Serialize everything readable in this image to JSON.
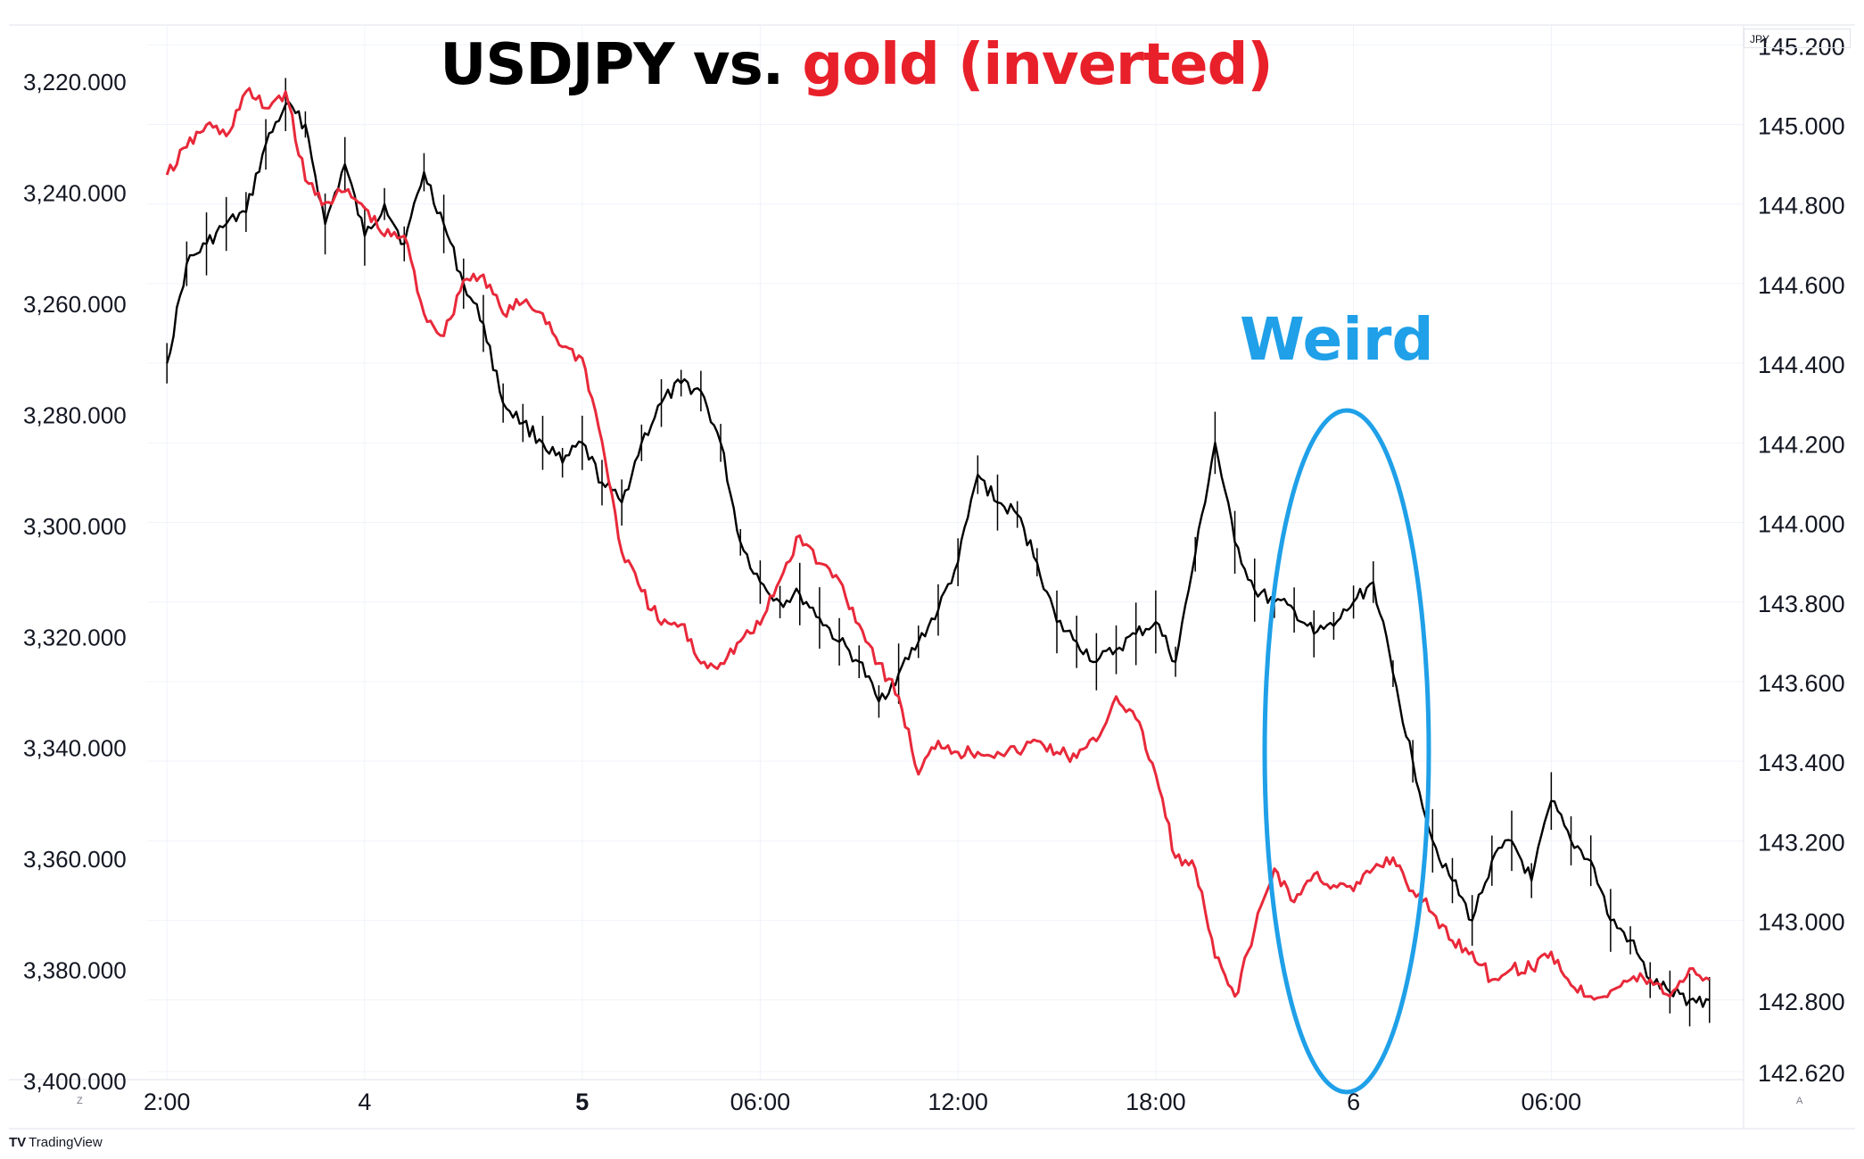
{
  "title": {
    "part1": "USDJPY vs.",
    "part2": "gold (inverted)"
  },
  "annotation": {
    "text": "Weird"
  },
  "branding": {
    "name": "TradingView",
    "mark": "TV"
  },
  "currency_label": "JPY",
  "corner_labels": {
    "left": "Z",
    "right": "A"
  },
  "colors": {
    "usdjpy": "#000000",
    "gold": "#e8293a",
    "annotation": "#1fa0e8",
    "grid": "#f0f3fa"
  },
  "chart_data": {
    "type": "line",
    "title": "USDJPY vs. gold (inverted)",
    "x_tick_labels": [
      "2:00",
      "4",
      "5",
      "06:00",
      "12:00",
      "18:00",
      "6",
      "06:00"
    ],
    "x_tick_bold": [
      false,
      false,
      true,
      false,
      false,
      false,
      false,
      false
    ],
    "left_axis": {
      "inverted": true,
      "ylim": [
        3210,
        3400
      ],
      "tick_labels": [
        "3,220.000",
        "3,240.000",
        "3,260.000",
        "3,280.000",
        "3,300.000",
        "3,320.000",
        "3,340.000",
        "3,360.000",
        "3,380.000",
        "3,400.000"
      ],
      "tick_values": [
        3220,
        3240,
        3260,
        3280,
        3300,
        3320,
        3340,
        3360,
        3380,
        3400
      ]
    },
    "right_axis": {
      "ylim": [
        142.6,
        145.25
      ],
      "tick_labels": [
        "145.200",
        "145.000",
        "144.800",
        "144.600",
        "144.400",
        "144.200",
        "144.000",
        "143.800",
        "143.600",
        "143.400",
        "143.200",
        "143.000",
        "142.800",
        "142.620"
      ],
      "tick_values": [
        145.2,
        145.0,
        144.8,
        144.6,
        144.4,
        144.2,
        144.0,
        143.8,
        143.6,
        143.4,
        143.2,
        143.0,
        142.8,
        142.62
      ]
    },
    "x": [
      0,
      0.1,
      0.2,
      0.3,
      0.4,
      0.5,
      0.6,
      0.7,
      0.8,
      0.9,
      1.0,
      1.1,
      1.2,
      1.3,
      1.4,
      1.5,
      1.6,
      1.7,
      1.8,
      1.9,
      2.0,
      2.1,
      2.2,
      2.3,
      2.4,
      2.5,
      2.6,
      2.7,
      2.8,
      2.9,
      3.0,
      3.1,
      3.2,
      3.3,
      3.4,
      3.5,
      3.6,
      3.7,
      3.8,
      3.9,
      4.0,
      4.1,
      4.2,
      4.3,
      4.4,
      4.5,
      4.6,
      4.7,
      4.8,
      4.9,
      5.0,
      5.1,
      5.2,
      5.3,
      5.4,
      5.5,
      5.6,
      5.7,
      5.8,
      5.9,
      6.0,
      6.1,
      6.2,
      6.3,
      6.4,
      6.5,
      6.6,
      6.7,
      6.8,
      6.9,
      7.0,
      7.1,
      7.2,
      7.3,
      7.4,
      7.5,
      7.6,
      7.7,
      7.8
    ],
    "series": [
      {
        "name": "USDJPY",
        "axis": "right",
        "values": [
          144.4,
          144.65,
          144.7,
          144.75,
          144.78,
          144.95,
          145.05,
          145.0,
          144.75,
          144.9,
          144.72,
          144.8,
          144.7,
          144.88,
          144.75,
          144.6,
          144.5,
          144.3,
          144.25,
          144.2,
          144.15,
          144.2,
          144.1,
          144.05,
          144.2,
          144.3,
          144.35,
          144.33,
          144.2,
          143.95,
          143.85,
          143.8,
          143.82,
          143.76,
          143.7,
          143.65,
          143.55,
          143.62,
          143.7,
          143.78,
          143.9,
          144.12,
          144.05,
          144.02,
          143.9,
          143.75,
          143.7,
          143.65,
          143.68,
          143.72,
          143.75,
          143.65,
          143.92,
          144.2,
          143.95,
          143.83,
          143.8,
          143.78,
          143.72,
          143.74,
          143.8,
          143.85,
          143.62,
          143.4,
          143.2,
          143.1,
          143.0,
          143.15,
          143.2,
          143.1,
          143.3,
          143.2,
          143.15,
          143.0,
          142.95,
          142.85,
          142.82,
          142.8,
          142.8
        ]
      },
      {
        "name": "gold (inverted)",
        "axis": "left",
        "values": [
          3237,
          3232,
          3228,
          3230,
          3222,
          3225,
          3222,
          3238,
          3242,
          3240,
          3243,
          3248,
          3248,
          3262,
          3266,
          3256,
          3255,
          3262,
          3260,
          3262,
          3268,
          3270,
          3285,
          3305,
          3312,
          3318,
          3318,
          3325,
          3325,
          3321,
          3318,
          3310,
          3302,
          3307,
          3310,
          3318,
          3325,
          3331,
          3345,
          3339,
          3341,
          3341,
          3341,
          3341,
          3339,
          3341,
          3342,
          3339,
          3331,
          3335,
          3345,
          3360,
          3362,
          3378,
          3385,
          3373,
          3362,
          3368,
          3363,
          3365,
          3366,
          3362,
          3360,
          3366,
          3370,
          3375,
          3377,
          3382,
          3380,
          3380,
          3377,
          3383,
          3385,
          3384,
          3382,
          3382,
          3385,
          3380,
          3382
        ]
      }
    ],
    "grid": true,
    "legend": "none"
  }
}
